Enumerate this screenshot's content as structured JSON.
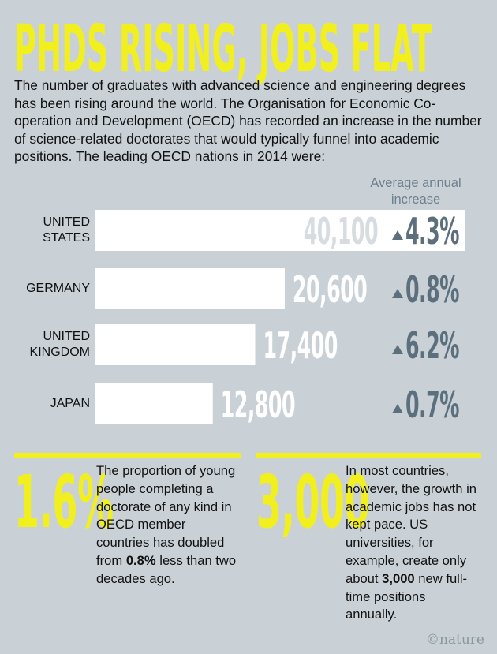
{
  "chart_data": {
    "type": "bar",
    "title": "PHDS RISING, JOBS FLAT",
    "subtitle": "The number of graduates with advanced science and engineering degrees has been rising around the world. The Organisation for Economic Co-operation and Development (OECD) has recorded an increase in the number of science-related doctorates that would typically funnel into academic positions. The leading OECD nations in 2014 were:",
    "categories": [
      "UNITED STATES",
      "GERMANY",
      "UNITED KINGDOM",
      "JAPAN"
    ],
    "values": [
      40100,
      20600,
      17400,
      12800
    ],
    "value_labels": [
      "40,100",
      "20,600",
      "17,400",
      "12,800"
    ],
    "color": "#ffffff",
    "increase_label": "Average annual increase",
    "increase": [
      4.3,
      0.8,
      6.2,
      0.7
    ],
    "increase_labels": [
      "4.3%",
      "0.8%",
      "6.2%",
      "0.7%"
    ]
  },
  "facts": [
    {
      "stat": "1.6%",
      "text": [
        "The proportion of young people completing a doctorate of any kind in OECD member countries has doubled from ",
        "0.8%",
        " less than two decades ago."
      ]
    },
    {
      "stat": "3,000",
      "text": [
        "In most countries, however, the growth in academic jobs has not kept pace. US universities, for example, create only about ",
        "3,000",
        " new full-time positions annually."
      ]
    }
  ],
  "credit": "©nature"
}
